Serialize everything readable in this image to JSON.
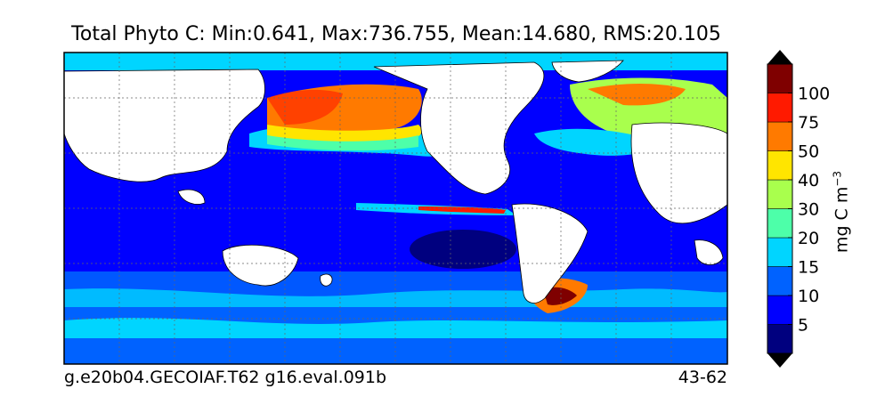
{
  "chart_data": {
    "type": "heatmap",
    "title": "Total Phyto C: Min:0.641, Max:736.755, Mean:14.680, RMS:20.105",
    "footer_left": "g.e20b04.GECOIAF.T62 g16.eval.091b",
    "footer_right": "43-62",
    "colorbar": {
      "label_main": "mg C m",
      "label_exp": "−3",
      "ticks": [
        "5",
        "10",
        "15",
        "20",
        "30",
        "40",
        "50",
        "75",
        "100"
      ],
      "colors": [
        "#00007f",
        "#0000ff",
        "#0062ff",
        "#00d5ff",
        "#4dffa9",
        "#a9ff4d",
        "#ffe500",
        "#ff7a00",
        "#ff1a00",
        "#7f0000"
      ],
      "extend": "both"
    }
  }
}
